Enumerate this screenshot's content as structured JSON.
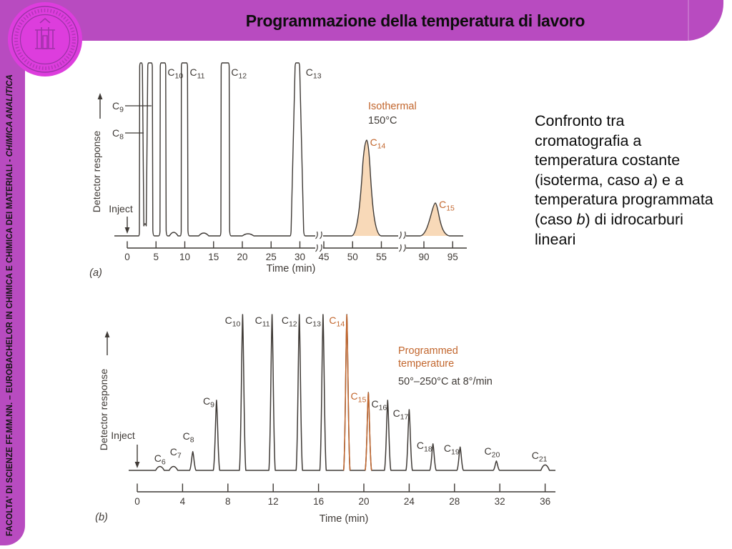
{
  "header": {
    "title": "Programmazione della temperatura di lavoro"
  },
  "sidebar": {
    "text_main": "FACOLTA' DI SCIENZE FF.MM.NN. – EUROBACHELOR IN CHIMICA E CHIMICA DEI MATERIALI - ",
    "text_italic": "CHIMICA ANALITICA"
  },
  "logo": {
    "name": "university-seal"
  },
  "caption": {
    "parts": [
      {
        "text": "Confronto tra cromatografia a temperatura costante (isoterma, caso ",
        "italic": false
      },
      {
        "text": "a",
        "italic": true
      },
      {
        "text": ") e a temperatura programmata (caso ",
        "italic": false
      },
      {
        "text": "b",
        "italic": true
      },
      {
        "text": ") di idrocarburi lineari",
        "italic": false
      }
    ]
  },
  "theme": {
    "purple": "#b84bc0",
    "logo_magenta": "#dd3ddd",
    "accent": "#c2662d",
    "peak_fill": "#f8d9b8",
    "ink": "#3f3a36",
    "background": "#ffffff"
  },
  "chart_data": [
    {
      "id": "a",
      "type": "line",
      "subtype": "chromatogram",
      "panel_label": "(a)",
      "xlabel": "Time (min)",
      "ylabel": "Detector response",
      "inject_label": "Inject",
      "annotations": [
        {
          "text": "Isothermal",
          "color": "accent"
        },
        {
          "text": "150°C",
          "color": "ink"
        }
      ],
      "x_ticks": [
        0,
        5,
        10,
        15,
        20,
        25,
        30,
        45,
        50,
        55,
        90,
        95
      ],
      "axis_breaks_min": [
        [
          33,
          44
        ],
        [
          58,
          88
        ]
      ],
      "peaks": [
        {
          "name": "C8",
          "t_min": 2.4,
          "rel_height": 1.0,
          "clipped": true
        },
        {
          "name": "C9",
          "t_min": 4.1,
          "rel_height": 1.0,
          "clipped": true
        },
        {
          "name": "C10",
          "t_min": 6.2,
          "rel_height": 1.0,
          "clipped": true
        },
        {
          "name": "C11",
          "t_min": 10.0,
          "rel_height": 1.0,
          "clipped": true
        },
        {
          "name": "C12",
          "t_min": 17.0,
          "rel_height": 1.0,
          "clipped": true
        },
        {
          "name": "C13",
          "t_min": 29.6,
          "rel_height": 1.0,
          "clipped": true
        },
        {
          "name": "C14",
          "t_min": 52.4,
          "rel_height": 0.55,
          "filled": true,
          "highlight": true
        },
        {
          "name": "C15",
          "t_min": 92.0,
          "rel_height": 0.19,
          "filled": true,
          "highlight": true
        }
      ]
    },
    {
      "id": "b",
      "type": "line",
      "subtype": "chromatogram",
      "panel_label": "(b)",
      "xlabel": "Time (min)",
      "ylabel": "Detector response",
      "inject_label": "Inject",
      "annotations": [
        {
          "text": "Programmed",
          "color": "accent"
        },
        {
          "text": "temperature",
          "color": "accent"
        },
        {
          "text": "50°–250°C at 8°/min",
          "color": "ink"
        }
      ],
      "x_ticks": [
        0,
        4,
        8,
        12,
        16,
        20,
        24,
        28,
        32,
        36
      ],
      "peaks": [
        {
          "name": "C6",
          "t_min": 2.0,
          "rel_height": 0.025
        },
        {
          "name": "C7",
          "t_min": 3.2,
          "rel_height": 0.025
        },
        {
          "name": "C8",
          "t_min": 4.9,
          "rel_height": 0.12
        },
        {
          "name": "C9",
          "t_min": 7.0,
          "rel_height": 0.45
        },
        {
          "name": "C10",
          "t_min": 9.3,
          "rel_height": 1.0
        },
        {
          "name": "C11",
          "t_min": 11.9,
          "rel_height": 1.0
        },
        {
          "name": "C12",
          "t_min": 14.3,
          "rel_height": 1.0
        },
        {
          "name": "C13",
          "t_min": 16.4,
          "rel_height": 1.0
        },
        {
          "name": "C14",
          "t_min": 18.5,
          "rel_height": 1.0,
          "highlight": true
        },
        {
          "name": "C15",
          "t_min": 20.4,
          "rel_height": 0.5,
          "highlight": true
        },
        {
          "name": "C16",
          "t_min": 22.1,
          "rel_height": 0.45
        },
        {
          "name": "C17",
          "t_min": 24.0,
          "rel_height": 0.39
        },
        {
          "name": "C18",
          "t_min": 26.1,
          "rel_height": 0.17
        },
        {
          "name": "C19",
          "t_min": 28.5,
          "rel_height": 0.15
        },
        {
          "name": "C20",
          "t_min": 31.7,
          "rel_height": 0.06
        },
        {
          "name": "C21",
          "t_min": 36.0,
          "rel_height": 0.035
        }
      ]
    }
  ]
}
